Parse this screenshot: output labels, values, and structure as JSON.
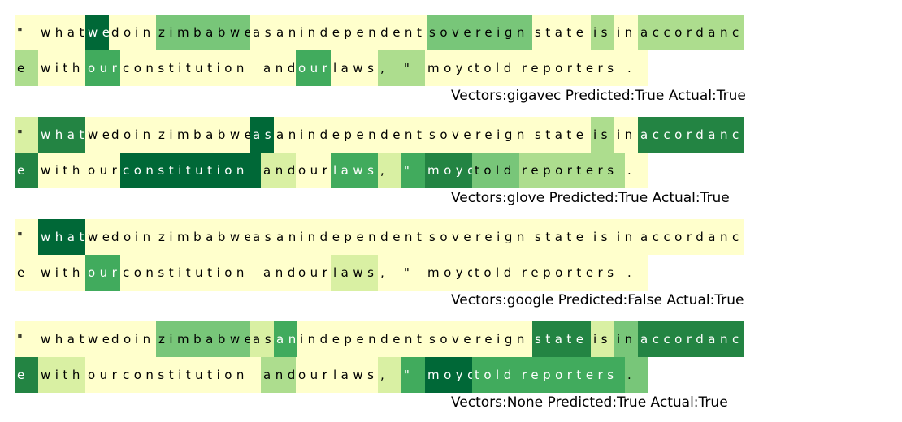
{
  "palette": [
    "#ffffcc",
    "#d9f0a3",
    "#addd8e",
    "#78c679",
    "#41ab5d",
    "#238443",
    "#006837"
  ],
  "text_light": "#ffffff",
  "text_dark": "#000000",
  "panels": [
    {
      "caption": "Vectors:gigavec Predicted:True Actual:True",
      "tokens": [
        {
          "text": "\"",
          "level": 0
        },
        {
          "text": "what",
          "level": 0
        },
        {
          "text": "we",
          "level": 6
        },
        {
          "text": "do",
          "level": 0
        },
        {
          "text": "in",
          "level": 0
        },
        {
          "text": "zimbabwe",
          "level": 3
        },
        {
          "text": "as",
          "level": 0
        },
        {
          "text": "an",
          "level": 0
        },
        {
          "text": "independent",
          "level": 0
        },
        {
          "text": "sovereign",
          "level": 3
        },
        {
          "text": "state",
          "level": 0
        },
        {
          "text": "is",
          "level": 2
        },
        {
          "text": "in",
          "level": 0
        },
        {
          "text": "accordanc",
          "level": 2
        },
        {
          "text": "e",
          "level": 2
        },
        {
          "text": "with",
          "level": 0
        },
        {
          "text": "our",
          "level": 4
        },
        {
          "text": "constitution",
          "level": 0
        },
        {
          "text": "and",
          "level": 0
        },
        {
          "text": "our",
          "level": 4
        },
        {
          "text": "laws",
          "level": 0
        },
        {
          "text": ",",
          "level": 2
        },
        {
          "text": "\"",
          "level": 2
        },
        {
          "text": "moyo",
          "level": 0
        },
        {
          "text": "told",
          "level": 0
        },
        {
          "text": "reporters",
          "level": 0
        },
        {
          "text": ".",
          "level": 0
        }
      ]
    },
    {
      "caption": "Vectors:glove Predicted:True Actual:True",
      "tokens": [
        {
          "text": "\"",
          "level": 1
        },
        {
          "text": "what",
          "level": 5
        },
        {
          "text": "we",
          "level": 0
        },
        {
          "text": "do",
          "level": 0
        },
        {
          "text": "in",
          "level": 0
        },
        {
          "text": "zimbabwe",
          "level": 0
        },
        {
          "text": "as",
          "level": 6
        },
        {
          "text": "an",
          "level": 0
        },
        {
          "text": "independent",
          "level": 0
        },
        {
          "text": "sovereign",
          "level": 0
        },
        {
          "text": "state",
          "level": 0
        },
        {
          "text": "is",
          "level": 2
        },
        {
          "text": "in",
          "level": 0
        },
        {
          "text": "accordanc",
          "level": 5
        },
        {
          "text": "e",
          "level": 5
        },
        {
          "text": "with",
          "level": 0
        },
        {
          "text": "our",
          "level": 0
        },
        {
          "text": "constitution",
          "level": 6
        },
        {
          "text": "and",
          "level": 1
        },
        {
          "text": "our",
          "level": 0
        },
        {
          "text": "laws",
          "level": 4
        },
        {
          "text": ",",
          "level": 1
        },
        {
          "text": "\"",
          "level": 4
        },
        {
          "text": "moyo",
          "level": 5
        },
        {
          "text": "told",
          "level": 3
        },
        {
          "text": "reporters",
          "level": 2
        },
        {
          "text": ".",
          "level": 0
        }
      ]
    },
    {
      "caption": "Vectors:google Predicted:False Actual:True",
      "tokens": [
        {
          "text": "\"",
          "level": 0
        },
        {
          "text": "what",
          "level": 6
        },
        {
          "text": "we",
          "level": 0
        },
        {
          "text": "do",
          "level": 0
        },
        {
          "text": "in",
          "level": 0
        },
        {
          "text": "zimbabwe",
          "level": 0
        },
        {
          "text": "as",
          "level": 0
        },
        {
          "text": "an",
          "level": 0
        },
        {
          "text": "independent",
          "level": 0
        },
        {
          "text": "sovereign",
          "level": 0
        },
        {
          "text": "state",
          "level": 0
        },
        {
          "text": "is",
          "level": 0
        },
        {
          "text": "in",
          "level": 0
        },
        {
          "text": "accordanc",
          "level": 0
        },
        {
          "text": "e",
          "level": 0
        },
        {
          "text": "with",
          "level": 0
        },
        {
          "text": "our",
          "level": 4
        },
        {
          "text": "constitution",
          "level": 0
        },
        {
          "text": "and",
          "level": 0
        },
        {
          "text": "our",
          "level": 0
        },
        {
          "text": "laws",
          "level": 1
        },
        {
          "text": ",",
          "level": 0
        },
        {
          "text": "\"",
          "level": 0
        },
        {
          "text": "moyo",
          "level": 0
        },
        {
          "text": "told",
          "level": 0
        },
        {
          "text": "reporters",
          "level": 0
        },
        {
          "text": ".",
          "level": 0
        }
      ]
    },
    {
      "caption": "Vectors:None Predicted:True Actual:True",
      "tokens": [
        {
          "text": "\"",
          "level": 0
        },
        {
          "text": "what",
          "level": 0
        },
        {
          "text": "we",
          "level": 0
        },
        {
          "text": "do",
          "level": 0
        },
        {
          "text": "in",
          "level": 0
        },
        {
          "text": "zimbabwe",
          "level": 3
        },
        {
          "text": "as",
          "level": 1
        },
        {
          "text": "an",
          "level": 4
        },
        {
          "text": "independent",
          "level": 0
        },
        {
          "text": "sovereign",
          "level": 0
        },
        {
          "text": "state",
          "level": 5
        },
        {
          "text": "is",
          "level": 1
        },
        {
          "text": "in",
          "level": 3
        },
        {
          "text": "accordanc",
          "level": 5
        },
        {
          "text": "e",
          "level": 5
        },
        {
          "text": "with",
          "level": 1
        },
        {
          "text": "our",
          "level": 0
        },
        {
          "text": "constitution",
          "level": 0
        },
        {
          "text": "and",
          "level": 2
        },
        {
          "text": "our",
          "level": 0
        },
        {
          "text": "laws",
          "level": 0
        },
        {
          "text": ",",
          "level": 1
        },
        {
          "text": "\"",
          "level": 4
        },
        {
          "text": "moyo",
          "level": 6
        },
        {
          "text": "told",
          "level": 4
        },
        {
          "text": "reporters",
          "level": 4
        },
        {
          "text": ".",
          "level": 3
        }
      ]
    }
  ]
}
